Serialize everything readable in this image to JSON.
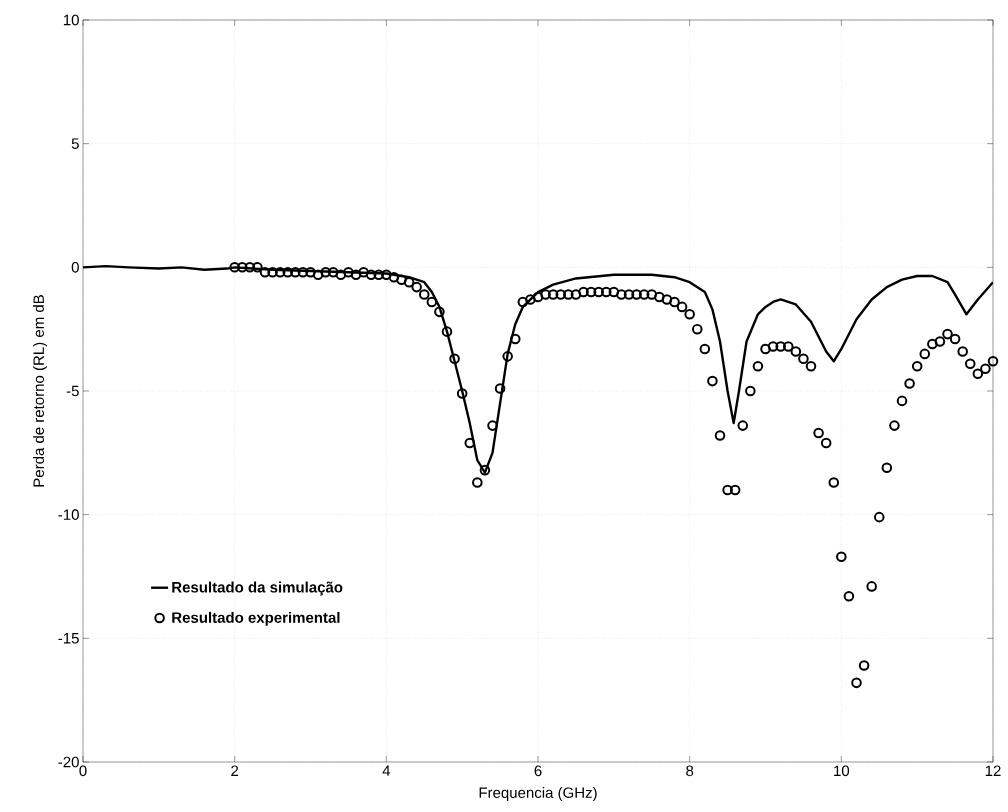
{
  "chart_data": {
    "type": "line",
    "xlabel": "Frequencia (GHz)",
    "ylabel": "Perda de retorno (RL) em dB",
    "xlim": [
      0,
      12
    ],
    "ylim": [
      -20,
      10
    ],
    "xticks": [
      0,
      2,
      4,
      6,
      8,
      10,
      12
    ],
    "yticks": [
      -20,
      -15,
      -10,
      -5,
      0,
      5,
      10
    ],
    "grid": true,
    "legend": "bottom left",
    "series": [
      {
        "name": "Resultado da simulação",
        "color": "#000000",
        "marker": "none",
        "line_style": "solid",
        "x": [
          0,
          0.3,
          0.6,
          1.0,
          1.3,
          1.6,
          1.9,
          2.0,
          2.5,
          3.0,
          3.5,
          4.0,
          4.3,
          4.5,
          4.6,
          4.7,
          4.8,
          4.9,
          5.0,
          5.1,
          5.2,
          5.3,
          5.4,
          5.5,
          5.6,
          5.7,
          5.8,
          6.0,
          6.2,
          6.5,
          7.0,
          7.5,
          7.8,
          8.0,
          8.2,
          8.3,
          8.4,
          8.5,
          8.58,
          8.65,
          8.75,
          8.9,
          9.0,
          9.1,
          9.2,
          9.4,
          9.6,
          9.8,
          9.9,
          10.0,
          10.2,
          10.4,
          10.6,
          10.8,
          11.0,
          11.2,
          11.4,
          11.5,
          11.65,
          11.8,
          12.0
        ],
        "values": [
          0,
          0.05,
          0,
          -0.05,
          0,
          -0.1,
          -0.05,
          0,
          -0.1,
          -0.15,
          -0.2,
          -0.25,
          -0.4,
          -0.6,
          -1.0,
          -1.6,
          -2.6,
          -3.8,
          -5.0,
          -6.3,
          -7.8,
          -8.3,
          -7.5,
          -5.5,
          -3.5,
          -2.3,
          -1.6,
          -1.0,
          -0.7,
          -0.45,
          -0.3,
          -0.3,
          -0.4,
          -0.6,
          -1.0,
          -1.7,
          -3.0,
          -5.0,
          -6.3,
          -5.0,
          -3.0,
          -1.9,
          -1.6,
          -1.4,
          -1.3,
          -1.5,
          -2.2,
          -3.4,
          -3.8,
          -3.3,
          -2.1,
          -1.3,
          -0.8,
          -0.5,
          -0.35,
          -0.35,
          -0.6,
          -1.1,
          -1.9,
          -1.3,
          -0.6
        ]
      },
      {
        "name": "Resultado experimental",
        "type": "scatter",
        "color": "#000000",
        "marker": "circle",
        "x": [
          2.0,
          2.1,
          2.2,
          2.3,
          2.4,
          2.5,
          2.6,
          2.7,
          2.8,
          2.9,
          3.0,
          3.1,
          3.2,
          3.3,
          3.4,
          3.5,
          3.6,
          3.7,
          3.8,
          3.9,
          4.0,
          4.1,
          4.2,
          4.3,
          4.4,
          4.5,
          4.6,
          4.7,
          4.8,
          4.9,
          5.0,
          5.1,
          5.2,
          5.3,
          5.4,
          5.5,
          5.6,
          5.7,
          5.8,
          5.9,
          6.0,
          6.1,
          6.2,
          6.3,
          6.4,
          6.5,
          6.6,
          6.7,
          6.8,
          6.9,
          7.0,
          7.1,
          7.2,
          7.3,
          7.4,
          7.5,
          7.6,
          7.7,
          7.8,
          7.9,
          8.0,
          8.1,
          8.2,
          8.3,
          8.4,
          8.5,
          8.6,
          8.7,
          8.8,
          8.9,
          9.0,
          9.1,
          9.2,
          9.3,
          9.4,
          9.5,
          9.6,
          9.7,
          9.8,
          9.9,
          10.0,
          10.1,
          10.2,
          10.3,
          10.4,
          10.5,
          10.6,
          10.7,
          10.8,
          10.9,
          11.0,
          11.1,
          11.2,
          11.3,
          11.4,
          11.5,
          11.6,
          11.7,
          11.8,
          11.9,
          12.0
        ],
        "values": [
          0,
          0,
          0,
          0,
          -0.2,
          -0.2,
          -0.2,
          -0.2,
          -0.2,
          -0.2,
          -0.2,
          -0.3,
          -0.2,
          -0.2,
          -0.3,
          -0.2,
          -0.3,
          -0.2,
          -0.3,
          -0.3,
          -0.3,
          -0.4,
          -0.5,
          -0.6,
          -0.8,
          -1.1,
          -1.4,
          -1.8,
          -2.6,
          -3.7,
          -5.1,
          -7.1,
          -8.7,
          -8.2,
          -6.4,
          -4.9,
          -3.6,
          -2.9,
          -1.4,
          -1.3,
          -1.2,
          -1.1,
          -1.1,
          -1.1,
          -1.1,
          -1.1,
          -1.0,
          -1.0,
          -1.0,
          -1.0,
          -1.0,
          -1.1,
          -1.1,
          -1.1,
          -1.1,
          -1.1,
          -1.2,
          -1.3,
          -1.4,
          -1.6,
          -1.9,
          -2.5,
          -3.3,
          -4.6,
          -6.8,
          -9.0,
          -9.0,
          -6.4,
          -5.0,
          -4.0,
          -3.3,
          -3.2,
          -3.2,
          -3.2,
          -3.4,
          -3.7,
          -4.0,
          -6.7,
          -7.1,
          -8.7,
          -11.7,
          -13.3,
          -16.8,
          -16.1,
          -12.9,
          -10.1,
          -8.1,
          -6.4,
          -5.4,
          -4.7,
          -4.0,
          -3.5,
          -3.1,
          -3.0,
          -2.7,
          -2.9,
          -3.4,
          -3.9,
          -4.3,
          -4.1,
          -3.8
        ]
      }
    ]
  }
}
